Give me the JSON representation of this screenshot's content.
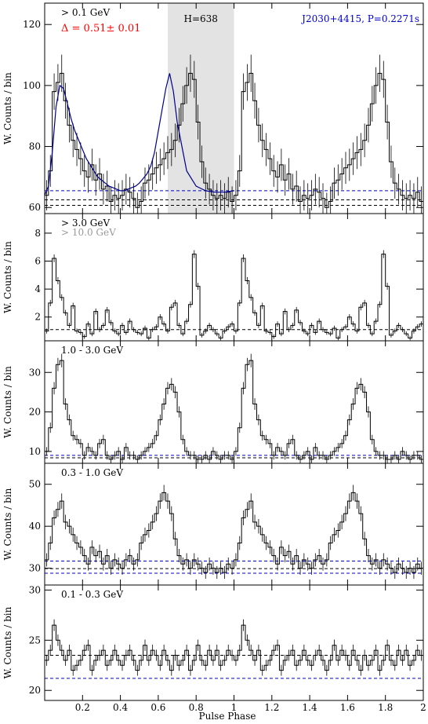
{
  "figure": {
    "xlabel": "Pulse Phase",
    "xlim": [
      0,
      2
    ],
    "x_ticks": [
      {
        "v": 0.2,
        "label": "0.2"
      },
      {
        "v": 0.4,
        "label": "0.4"
      },
      {
        "v": 0.6,
        "label": "0.6"
      },
      {
        "v": 0.8,
        "label": "0.8"
      },
      {
        "v": 1.0,
        "label": "1"
      },
      {
        "v": 1.2,
        "label": "1.2"
      },
      {
        "v": 1.4,
        "label": "1.4"
      },
      {
        "v": 1.6,
        "label": "1.6"
      },
      {
        "v": 1.8,
        "label": "1.8"
      },
      {
        "v": 2.0,
        "label": "2"
      }
    ],
    "colors": {
      "data": "#000000",
      "model": "#00008b",
      "background_line": "#0000cc",
      "offpulse_shade": "#e3e3e3",
      "delta_text": "#ff0000",
      "source_text": "#0000cc",
      "secondary_label": "#999999"
    }
  },
  "chart_data": [
    {
      "type": "histogram",
      "energy_label": "> 0.1 GeV",
      "delta_label": "Δ = 0.51± 0.01",
      "h_label": "H=638",
      "source_label": "J2030+4415, P=0.2271s",
      "ylabel": "W. Counts / bin",
      "ylim": [
        58,
        127
      ],
      "y_ticks": [
        60,
        80,
        100,
        120
      ],
      "offpulse_region": [
        0.65,
        1.0
      ],
      "background_levels": [
        {
          "value": 65.5,
          "style": "blue-dashed"
        },
        {
          "value": 62.5,
          "style": "black-dashed"
        },
        {
          "value": 60.7,
          "style": "black-dashed"
        }
      ],
      "bins_per_cycle": 50,
      "values": [
        64,
        72,
        98,
        101,
        104,
        95,
        87,
        82,
        79,
        76,
        72,
        70,
        74,
        69,
        71,
        66,
        67,
        62,
        64,
        63,
        64,
        66,
        65,
        63,
        60,
        62,
        68,
        69,
        71,
        73,
        74,
        76,
        78,
        79,
        82,
        87,
        94,
        100,
        104,
        102,
        88,
        75,
        68,
        66,
        64,
        63,
        64,
        63,
        65,
        62
      ],
      "model_x": [
        0,
        0.02,
        0.04,
        0.06,
        0.08,
        0.1,
        0.12,
        0.14,
        0.16,
        0.18,
        0.2,
        0.22,
        0.24,
        0.26,
        0.28,
        0.3,
        0.32,
        0.34,
        0.36,
        0.38,
        0.4,
        0.42,
        0.44,
        0.46,
        0.48,
        0.5,
        0.52,
        0.54,
        0.56,
        0.58,
        0.6,
        0.62,
        0.64,
        0.66,
        0.68,
        0.7,
        0.75,
        0.8,
        0.85,
        0.9,
        0.95,
        1.0
      ],
      "model_y": [
        64,
        67,
        78,
        93,
        100,
        99,
        94,
        89,
        85,
        82,
        79,
        76,
        74,
        72,
        70,
        69,
        68,
        67,
        66.5,
        66,
        65.5,
        65.5,
        66,
        66.5,
        67,
        68,
        69.5,
        71,
        73.5,
        78,
        85,
        92,
        99,
        104,
        98,
        88,
        72,
        67,
        65.5,
        65,
        65,
        65.5
      ]
    },
    {
      "type": "histogram",
      "energy_label": "> 3.0 GeV",
      "secondary_label": "> 10.0 GeV",
      "ylabel": "W. Counts / bin",
      "ylim": [
        0.3,
        9.4
      ],
      "y_ticks": [
        2,
        4,
        6,
        8
      ],
      "background_levels": [
        {
          "value": 1.1,
          "style": "black-dashed"
        }
      ],
      "bins_per_cycle": 50,
      "values": [
        1.0,
        3.0,
        6.2,
        4.6,
        3.4,
        2.3,
        1.4,
        2.8,
        1.0,
        0.9,
        0.6,
        1.5,
        0.8,
        2.4,
        1.1,
        1.4,
        2.5,
        1.6,
        1.0,
        0.8,
        1.4,
        0.9,
        1.7,
        1.1,
        0.9,
        0.8,
        1.2,
        0.5,
        1.1,
        1.3,
        2.0,
        1.5,
        1.0,
        2.7,
        3.0,
        1.4,
        0.8,
        1.7,
        2.9,
        6.5,
        4.2,
        0.7,
        1.0,
        1.4,
        1.1,
        0.8,
        0.5,
        1.0,
        1.3,
        1.5
      ]
    },
    {
      "type": "histogram",
      "energy_label": "1.0 - 3.0 GeV",
      "ylabel": "W. Counts / bin",
      "ylim": [
        7,
        38
      ],
      "y_ticks": [
        10,
        20,
        30
      ],
      "background_levels": [
        {
          "value": 9.0,
          "style": "blue-dashed"
        },
        {
          "value": 8.4,
          "style": "black-dashed"
        }
      ],
      "bins_per_cycle": 50,
      "values": [
        10,
        16,
        26,
        32,
        33,
        22,
        18,
        14,
        13,
        12,
        9,
        11,
        10,
        9,
        12,
        13,
        9,
        8,
        9,
        10,
        8,
        11,
        9,
        9,
        8,
        9,
        10,
        11,
        12,
        14,
        18,
        22,
        26,
        27,
        25,
        20,
        13,
        10,
        9,
        9,
        8,
        8,
        9,
        8,
        10,
        9,
        8,
        9,
        9,
        8
      ]
    },
    {
      "type": "histogram",
      "energy_label": "0.3 - 1.0 GeV",
      "ylabel": "W. Counts / bin",
      "ylim": [
        26,
        55
      ],
      "y_ticks": [
        30,
        40,
        50
      ],
      "background_levels": [
        {
          "value": 31.7,
          "style": "blue-dashed"
        },
        {
          "value": 29.9,
          "style": "black-dashed"
        },
        {
          "value": 28.8,
          "style": "blue-dashed"
        }
      ],
      "bins_per_cycle": 50,
      "values": [
        32,
        36,
        42,
        44,
        46,
        41,
        40,
        38,
        36,
        35,
        33,
        31,
        35,
        33,
        34,
        31,
        33,
        30,
        32,
        31,
        30,
        32,
        33,
        31,
        32,
        36,
        38,
        39,
        41,
        43,
        46,
        48,
        46,
        43,
        37,
        33,
        31,
        32,
        30,
        32,
        31,
        30,
        29,
        31,
        30,
        29,
        30,
        29,
        31,
        30
      ]
    },
    {
      "type": "histogram",
      "energy_label": "0.1 - 0.3 GeV",
      "ylabel": "W. Counts / bin",
      "ylim": [
        19,
        30.5
      ],
      "y_ticks": [
        20,
        25,
        30
      ],
      "background_levels": [
        {
          "value": 23.5,
          "style": "black-dashed"
        },
        {
          "value": 21.2,
          "style": "blue-dashed"
        }
      ],
      "bins_per_cycle": 50,
      "values": [
        23,
        24,
        26.5,
        25,
        24,
        23,
        24,
        22,
        22.5,
        23,
        24,
        24.5,
        22,
        23,
        23.5,
        24,
        22.5,
        23,
        24,
        23,
        22.5,
        23.5,
        24,
        23,
        22,
        23,
        24.5,
        23,
        24,
        23.5,
        22.5,
        24,
        23,
        22,
        23.5,
        22.5,
        23,
        24,
        22,
        23,
        24.5,
        23,
        22.5,
        24,
        23,
        24,
        22.5,
        23,
        24,
        23.5
      ]
    }
  ]
}
